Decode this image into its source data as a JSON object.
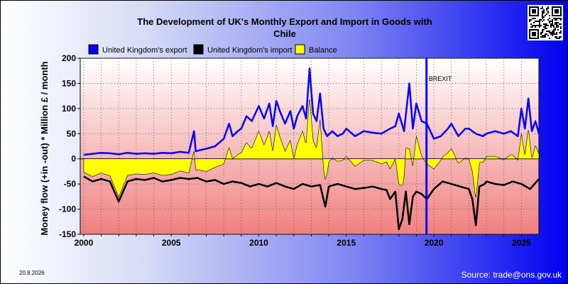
{
  "title_line1": "The Development of UK's Monthly Export and Import in Goods with",
  "title_line2": "Chile",
  "ylabel": "Money flow (+in -out) * Million £ / month",
  "date_stamp": "20.8.2026",
  "source": "Source: trade@ons.gov.uk",
  "qr_icon": "qr-code-icon",
  "chart_data": {
    "type": "line",
    "title": "The Development of UK's Monthly Export and Import in Goods with Chile",
    "ylabel": "Money flow (+in -out) * Million £ / month",
    "xlim": [
      1999.8,
      2026.0
    ],
    "ylim": [
      -150,
      200
    ],
    "yticks": [
      -150,
      -100,
      -50,
      0,
      50,
      100,
      150,
      200
    ],
    "xticks": [
      2000,
      2005,
      2010,
      2015,
      2020,
      2025
    ],
    "grid": true,
    "legend_placement": "top-left",
    "colors": {
      "export": "#0000ff",
      "import": "#000000",
      "balance": "#ffff00",
      "brexit": "#0000ff"
    },
    "annotation": {
      "label": "BREXIT",
      "x": 2019.58
    },
    "series": [
      {
        "name": "United Kingdom's export",
        "x": [
          2000,
          2000.5,
          2001,
          2001.5,
          2002,
          2002.5,
          2003,
          2003.5,
          2004,
          2004.5,
          2005,
          2005.5,
          2006,
          2006.3,
          2006.4,
          2006.6,
          2007,
          2007.5,
          2008,
          2008.3,
          2008.5,
          2008.8,
          2009,
          2009.3,
          2009.6,
          2010,
          2010.3,
          2010.6,
          2010.8,
          2011,
          2011.2,
          2011.5,
          2011.8,
          2012,
          2012.2,
          2012.5,
          2012.7,
          2012.9,
          2013.1,
          2013.3,
          2013.5,
          2013.7,
          2013.9,
          2014.2,
          2014.5,
          2014.8,
          2015,
          2015.5,
          2016,
          2016.5,
          2017,
          2017.5,
          2017.8,
          2018,
          2018.3,
          2018.6,
          2018.8,
          2019,
          2019.3,
          2019.6,
          2020,
          2020.4,
          2020.8,
          2021,
          2021.4,
          2021.8,
          2022,
          2022.4,
          2022.8,
          2023,
          2023.5,
          2024,
          2024.4,
          2024.8,
          2025,
          2025.2,
          2025.4,
          2025.6,
          2025.8,
          2026
        ],
        "values": [
          8,
          10,
          12,
          11,
          9,
          12,
          10,
          11,
          10,
          12,
          11,
          14,
          12,
          55,
          15,
          17,
          20,
          25,
          40,
          70,
          45,
          55,
          60,
          85,
          75,
          105,
          80,
          110,
          65,
          115,
          95,
          70,
          95,
          60,
          85,
          105,
          80,
          180,
          90,
          75,
          130,
          60,
          45,
          55,
          45,
          50,
          60,
          45,
          55,
          52,
          50,
          60,
          65,
          90,
          55,
          150,
          60,
          110,
          75,
          70,
          40,
          45,
          60,
          70,
          45,
          60,
          60,
          50,
          45,
          50,
          55,
          50,
          55,
          45,
          100,
          60,
          120,
          55,
          75,
          50
        ]
      },
      {
        "name": "United Kingdom's import",
        "x": [
          2000,
          2000.5,
          2001,
          2001.5,
          2002,
          2002.5,
          2003,
          2003.5,
          2004,
          2004.5,
          2005,
          2005.5,
          2006,
          2006.5,
          2007,
          2007.5,
          2008,
          2008.5,
          2009,
          2009.5,
          2010,
          2010.5,
          2011,
          2011.5,
          2012,
          2012.5,
          2013,
          2013.5,
          2013.8,
          2014,
          2014.5,
          2015,
          2015.5,
          2016,
          2016.5,
          2017,
          2017.3,
          2017.5,
          2017.8,
          2018,
          2018.2,
          2018.4,
          2018.6,
          2018.8,
          2019,
          2019.3,
          2019.6,
          2020,
          2020.5,
          2021,
          2021.5,
          2022,
          2022.2,
          2022.4,
          2022.6,
          2022.9,
          2023,
          2023.5,
          2024,
          2024.5,
          2025,
          2025.5,
          2026
        ],
        "values": [
          -35,
          -45,
          -40,
          -45,
          -85,
          -45,
          -40,
          -42,
          -38,
          -45,
          -42,
          -38,
          -40,
          -38,
          -45,
          -42,
          -50,
          -45,
          -48,
          -55,
          -50,
          -55,
          -48,
          -55,
          -60,
          -50,
          -55,
          -52,
          -95,
          -55,
          -50,
          -55,
          -60,
          -58,
          -55,
          -60,
          -62,
          -80,
          -65,
          -140,
          -120,
          -65,
          -130,
          -75,
          -65,
          -70,
          -80,
          -60,
          -45,
          -50,
          -55,
          -60,
          -80,
          -132,
          -55,
          -50,
          -45,
          -50,
          -52,
          -45,
          -50,
          -60,
          -40
        ]
      }
    ]
  }
}
